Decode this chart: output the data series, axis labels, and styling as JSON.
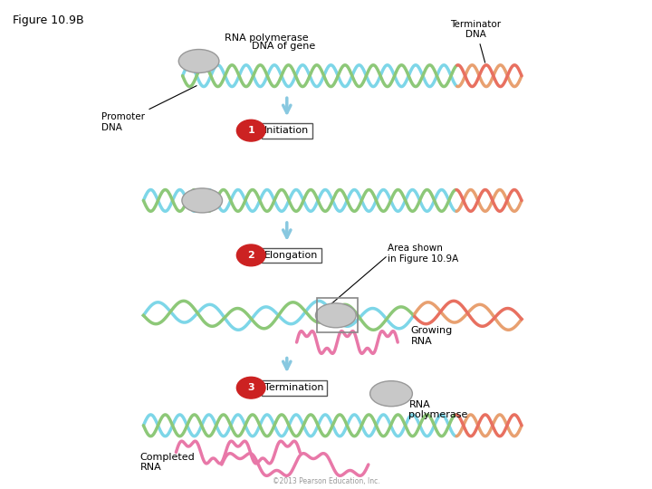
{
  "title": "Figure 10.9B",
  "background_color": "#ffffff",
  "figure_width": 7.2,
  "figure_height": 5.4,
  "dpi": 100,
  "labels": {
    "rna_polymerase_top": "RNA polymerase",
    "dna_of_gene": "DNA of gene",
    "terminator_dna": "Terminator\nDNA",
    "promoter_dna": "Promoter\nDNA",
    "initiation": "Initiation",
    "elongation": "Elongation",
    "area_shown": "Area shown\nin Figure 10.9A",
    "termination": "Termination",
    "growing_rna": "Growing\nRNA",
    "completed_rna": "Completed\nRNA",
    "rna_polymerase_bottom": "RNA\npolymerase",
    "copyright": "©2013 Pearson Education, Inc."
  },
  "colors": {
    "dna_cyan": "#7dd6e8",
    "dna_green": "#8dc878",
    "dna_orange": "#e8a070",
    "dna_red_orange": "#e87060",
    "arrow_blue": "#88c8e0",
    "step_red": "#cc2222",
    "step_text": "#ffffff",
    "polymerase_gray": "#c8c8c8",
    "rna_pink": "#e878a8",
    "box_outline": "#888888",
    "text_black": "#000000",
    "label_box_bg": "#ffffff",
    "label_box_edge": "#555555"
  }
}
